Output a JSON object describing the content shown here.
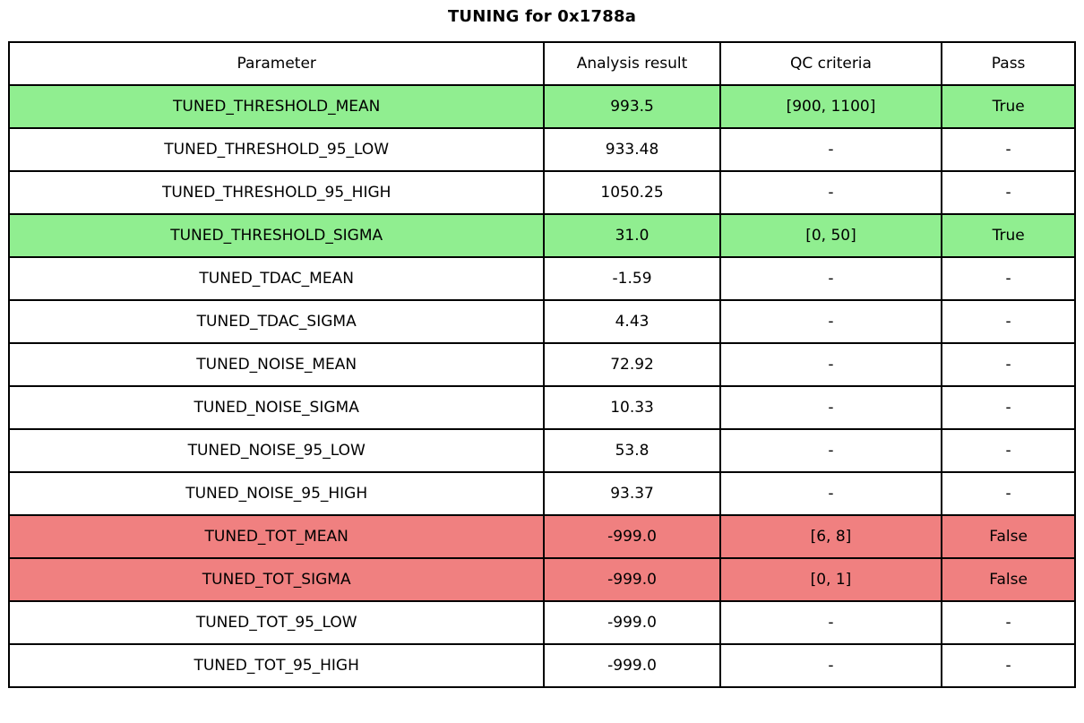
{
  "title": "TUNING for 0x1788a",
  "colors": {
    "pass_row": "#90ee90",
    "fail_row": "#f08080",
    "border": "#000000",
    "background": "#ffffff",
    "text": "#000000"
  },
  "chart_data": {
    "type": "table",
    "title": "TUNING for 0x1788a",
    "columns": [
      "Parameter",
      "Analysis result",
      "QC criteria",
      "Pass"
    ],
    "rows": [
      [
        "TUNED_THRESHOLD_MEAN",
        "993.5",
        "[900, 1100]",
        "True"
      ],
      [
        "TUNED_THRESHOLD_95_LOW",
        "933.48",
        "-",
        "-"
      ],
      [
        "TUNED_THRESHOLD_95_HIGH",
        "1050.25",
        "-",
        "-"
      ],
      [
        "TUNED_THRESHOLD_SIGMA",
        "31.0",
        "[0, 50]",
        "True"
      ],
      [
        "TUNED_TDAC_MEAN",
        "-1.59",
        "-",
        "-"
      ],
      [
        "TUNED_TDAC_SIGMA",
        "4.43",
        "-",
        "-"
      ],
      [
        "TUNED_NOISE_MEAN",
        "72.92",
        "-",
        "-"
      ],
      [
        "TUNED_NOISE_SIGMA",
        "10.33",
        "-",
        "-"
      ],
      [
        "TUNED_NOISE_95_LOW",
        "53.8",
        "-",
        "-"
      ],
      [
        "TUNED_NOISE_95_HIGH",
        "93.37",
        "-",
        "-"
      ],
      [
        "TUNED_TOT_MEAN",
        "-999.0",
        "[6, 8]",
        "False"
      ],
      [
        "TUNED_TOT_SIGMA",
        "-999.0",
        "[0, 1]",
        "False"
      ],
      [
        "TUNED_TOT_95_LOW",
        "-999.0",
        "-",
        "-"
      ],
      [
        "TUNED_TOT_95_HIGH",
        "-999.0",
        "-",
        "-"
      ]
    ],
    "row_highlights": [
      "pass",
      "none",
      "none",
      "pass",
      "none",
      "none",
      "none",
      "none",
      "none",
      "none",
      "fail",
      "fail",
      "none",
      "none"
    ],
    "layout": {
      "column_width_fractions": [
        0.502,
        0.165,
        0.208,
        0.125
      ],
      "grid": "on",
      "legend": "none"
    }
  }
}
